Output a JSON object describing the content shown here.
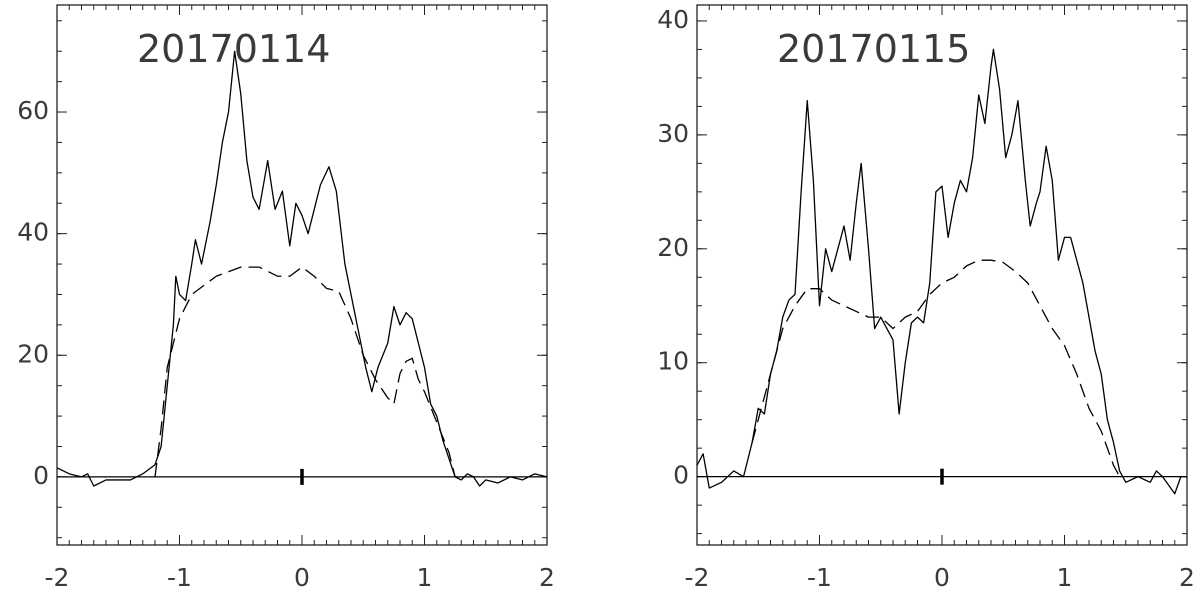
{
  "chart_data": [
    {
      "type": "line",
      "title": "20170114",
      "xlim": [
        -2,
        2
      ],
      "xticks": [
        -2,
        -1,
        0,
        1,
        2
      ],
      "ylim": [
        -11.2,
        77.6
      ],
      "yticks": [
        0,
        20,
        40,
        60
      ],
      "series": [
        {
          "color": "#000000",
          "linestyle": "solid",
          "x": [
            -2.0,
            -1.9,
            -1.8,
            -1.75,
            -1.7,
            -1.6,
            -1.5,
            -1.4,
            -1.3,
            -1.2,
            -1.15,
            -1.1,
            -1.05,
            -1.03,
            -1.0,
            -0.95,
            -0.9,
            -0.87,
            -0.82,
            -0.75,
            -0.7,
            -0.65,
            -0.6,
            -0.55,
            -0.5,
            -0.45,
            -0.4,
            -0.35,
            -0.28,
            -0.22,
            -0.16,
            -0.1,
            -0.05,
            0.0,
            0.05,
            0.1,
            0.15,
            0.22,
            0.28,
            0.35,
            0.45,
            0.52,
            0.57,
            0.62,
            0.7,
            0.75,
            0.8,
            0.85,
            0.9,
            0.95,
            1.0,
            1.05,
            1.1,
            1.15,
            1.2,
            1.25,
            1.3,
            1.35,
            1.4,
            1.45,
            1.5,
            1.6,
            1.7,
            1.8,
            1.9,
            2.0
          ],
          "values": [
            1.5,
            0.5,
            0,
            0.5,
            -1.5,
            -0.5,
            -0.5,
            -0.5,
            0.5,
            2,
            5,
            15,
            25,
            33,
            30,
            29,
            35,
            39,
            35,
            42,
            48,
            55,
            60,
            70,
            63,
            52,
            46,
            44,
            52,
            44,
            47,
            38,
            45,
            43,
            40,
            44,
            48,
            51,
            47,
            35,
            25,
            18,
            14,
            18,
            22,
            28,
            25,
            27,
            26,
            22,
            18,
            12,
            10,
            6,
            3,
            0,
            -0.5,
            0.5,
            0,
            -1.5,
            -0.5,
            -1,
            0,
            -0.5,
            0.5,
            0
          ]
        },
        {
          "color": "#000000",
          "linestyle": "dashed",
          "x": [
            -1.2,
            -1.15,
            -1.1,
            -1.0,
            -0.9,
            -0.7,
            -0.5,
            -0.35,
            -0.2,
            -0.1,
            0.0,
            0.1,
            0.2,
            0.3,
            0.4,
            0.5,
            0.6,
            0.7,
            0.75,
            0.8,
            0.85,
            0.9,
            0.95,
            1.0,
            1.1,
            1.2,
            1.25
          ],
          "values": [
            0,
            8,
            18,
            26,
            30,
            33,
            34.5,
            34.5,
            33,
            33,
            34.5,
            33,
            31,
            30.5,
            26,
            20,
            16,
            13,
            12,
            17,
            19,
            19.5,
            16,
            14,
            9,
            4,
            0
          ]
        }
      ]
    },
    {
      "type": "line",
      "title": "20170115",
      "xlim": [
        -2,
        2
      ],
      "xticks": [
        -2,
        -1,
        0,
        1,
        2
      ],
      "ylim": [
        -6,
        41.4
      ],
      "yticks": [
        0,
        10,
        20,
        30,
        40
      ],
      "series": [
        {
          "color": "#000000",
          "linestyle": "solid",
          "x": [
            -2.0,
            -1.95,
            -1.9,
            -1.8,
            -1.7,
            -1.62,
            -1.55,
            -1.5,
            -1.45,
            -1.4,
            -1.35,
            -1.3,
            -1.25,
            -1.2,
            -1.15,
            -1.1,
            -1.05,
            -1.0,
            -0.95,
            -0.9,
            -0.85,
            -0.8,
            -0.75,
            -0.7,
            -0.66,
            -0.6,
            -0.55,
            -0.5,
            -0.45,
            -0.4,
            -0.35,
            -0.3,
            -0.25,
            -0.2,
            -0.15,
            -0.1,
            -0.05,
            0.0,
            0.05,
            0.1,
            0.15,
            0.2,
            0.25,
            0.3,
            0.35,
            0.4,
            0.42,
            0.47,
            0.52,
            0.57,
            0.62,
            0.68,
            0.72,
            0.77,
            0.8,
            0.85,
            0.9,
            0.95,
            1.0,
            1.05,
            1.1,
            1.15,
            1.2,
            1.25,
            1.3,
            1.35,
            1.4,
            1.45,
            1.5,
            1.6,
            1.7,
            1.75,
            1.8,
            1.9,
            1.95,
            2.0
          ],
          "values": [
            1,
            2,
            -1,
            -0.5,
            0.5,
            0,
            3,
            6,
            5.5,
            9,
            11,
            14,
            15.5,
            16,
            25,
            33,
            26,
            15,
            20,
            18,
            20,
            22,
            19,
            24,
            27.5,
            20,
            13,
            14,
            13,
            12,
            5.5,
            10,
            13.5,
            14,
            13.5,
            17,
            25,
            25.5,
            21,
            24,
            26,
            25,
            28,
            33.5,
            31,
            36,
            37.5,
            34,
            28,
            30,
            33,
            26,
            22,
            24,
            25,
            29,
            26,
            19,
            21,
            21,
            19,
            17,
            14,
            11,
            9,
            5,
            3,
            0.5,
            -0.5,
            0,
            -0.5,
            0.5,
            0,
            -1.5,
            0,
            0
          ]
        },
        {
          "color": "#000000",
          "linestyle": "dashed",
          "x": [
            -1.55,
            -1.5,
            -1.4,
            -1.3,
            -1.2,
            -1.1,
            -1.0,
            -0.9,
            -0.8,
            -0.7,
            -0.6,
            -0.5,
            -0.4,
            -0.3,
            -0.2,
            -0.1,
            0.0,
            0.1,
            0.2,
            0.3,
            0.4,
            0.5,
            0.6,
            0.7,
            0.8,
            0.9,
            1.0,
            1.1,
            1.2,
            1.3,
            1.4,
            1.45
          ],
          "values": [
            3,
            5,
            9,
            13,
            15,
            16.5,
            16.5,
            15.5,
            15,
            14.5,
            14,
            14,
            13,
            14,
            14.5,
            16,
            17,
            17.5,
            18.5,
            19,
            19,
            18.8,
            18,
            17,
            15,
            13,
            11.5,
            9,
            6,
            4,
            1,
            0
          ]
        }
      ]
    }
  ]
}
